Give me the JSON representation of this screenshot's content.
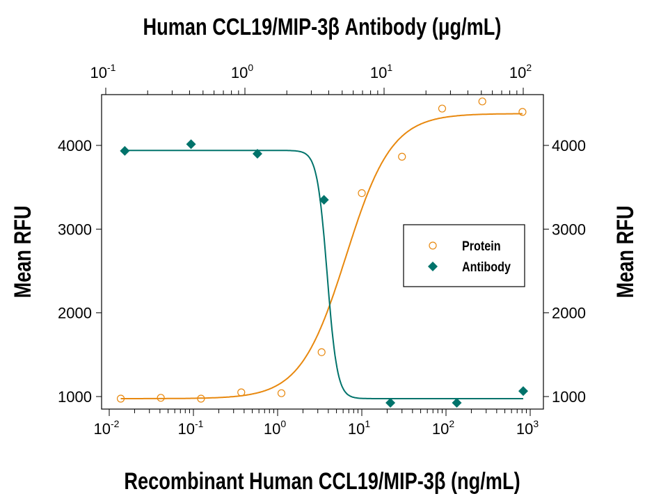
{
  "chart_data": {
    "type": "scatter",
    "title": "Human CCL19/MIP-3β Antibody (μg/mL)",
    "xlabel": "Recombinant Human CCL19/MIP-3β (ng/mL)",
    "x2label": "Human CCL19/MIP-3β Antibody (μg/mL)",
    "ylabel": "Mean RFU",
    "y2label": "Mean RFU",
    "xscale": "log",
    "x2scale": "log",
    "xlim": [
      0.01,
      1000
    ],
    "x2lim": [
      0.1,
      100
    ],
    "ylim": [
      880,
      4620
    ],
    "xticks": [
      {
        "base": "10",
        "exp": "-2"
      },
      {
        "base": "10",
        "exp": "-1"
      },
      {
        "base": "10",
        "exp": "0"
      },
      {
        "base": "10",
        "exp": "1"
      },
      {
        "base": "10",
        "exp": "2"
      },
      {
        "base": "10",
        "exp": "3"
      }
    ],
    "x2ticks": [
      {
        "base": "10",
        "exp": "-1"
      },
      {
        "base": "10",
        "exp": "0"
      },
      {
        "base": "10",
        "exp": "1"
      },
      {
        "base": "10",
        "exp": "2"
      }
    ],
    "yticks": [
      "1000",
      "2000",
      "3000",
      "4000"
    ],
    "grid": false,
    "legend_position": "right",
    "series": [
      {
        "name": "Protein",
        "axis": "bottom",
        "marker": "open-circle",
        "color": "#E8880E",
        "x": [
          0.0137,
          0.041,
          0.123,
          0.37,
          1.11,
          3.33,
          10,
          30,
          90,
          270,
          810
        ],
        "y": [
          975,
          985,
          975,
          1050,
          1040,
          1530,
          3430,
          3865,
          4440,
          4525,
          4400
        ],
        "fit": {
          "model": "4PL",
          "bottom": 975,
          "top": 4380,
          "ec50": 6.5,
          "hill": 1.6
        }
      },
      {
        "name": "Antibody",
        "axis": "top",
        "marker": "filled-diamond",
        "color": "#00736B",
        "x": [
          0.137,
          0.41,
          1.23,
          3.7,
          11.1,
          33.3,
          100
        ],
        "y": [
          3935,
          4015,
          3900,
          3350,
          925,
          925,
          1065
        ],
        "fit": {
          "model": "4PL",
          "bottom": 975,
          "top": 3940,
          "ec50": 3.9,
          "hill": 12
        }
      }
    ]
  }
}
